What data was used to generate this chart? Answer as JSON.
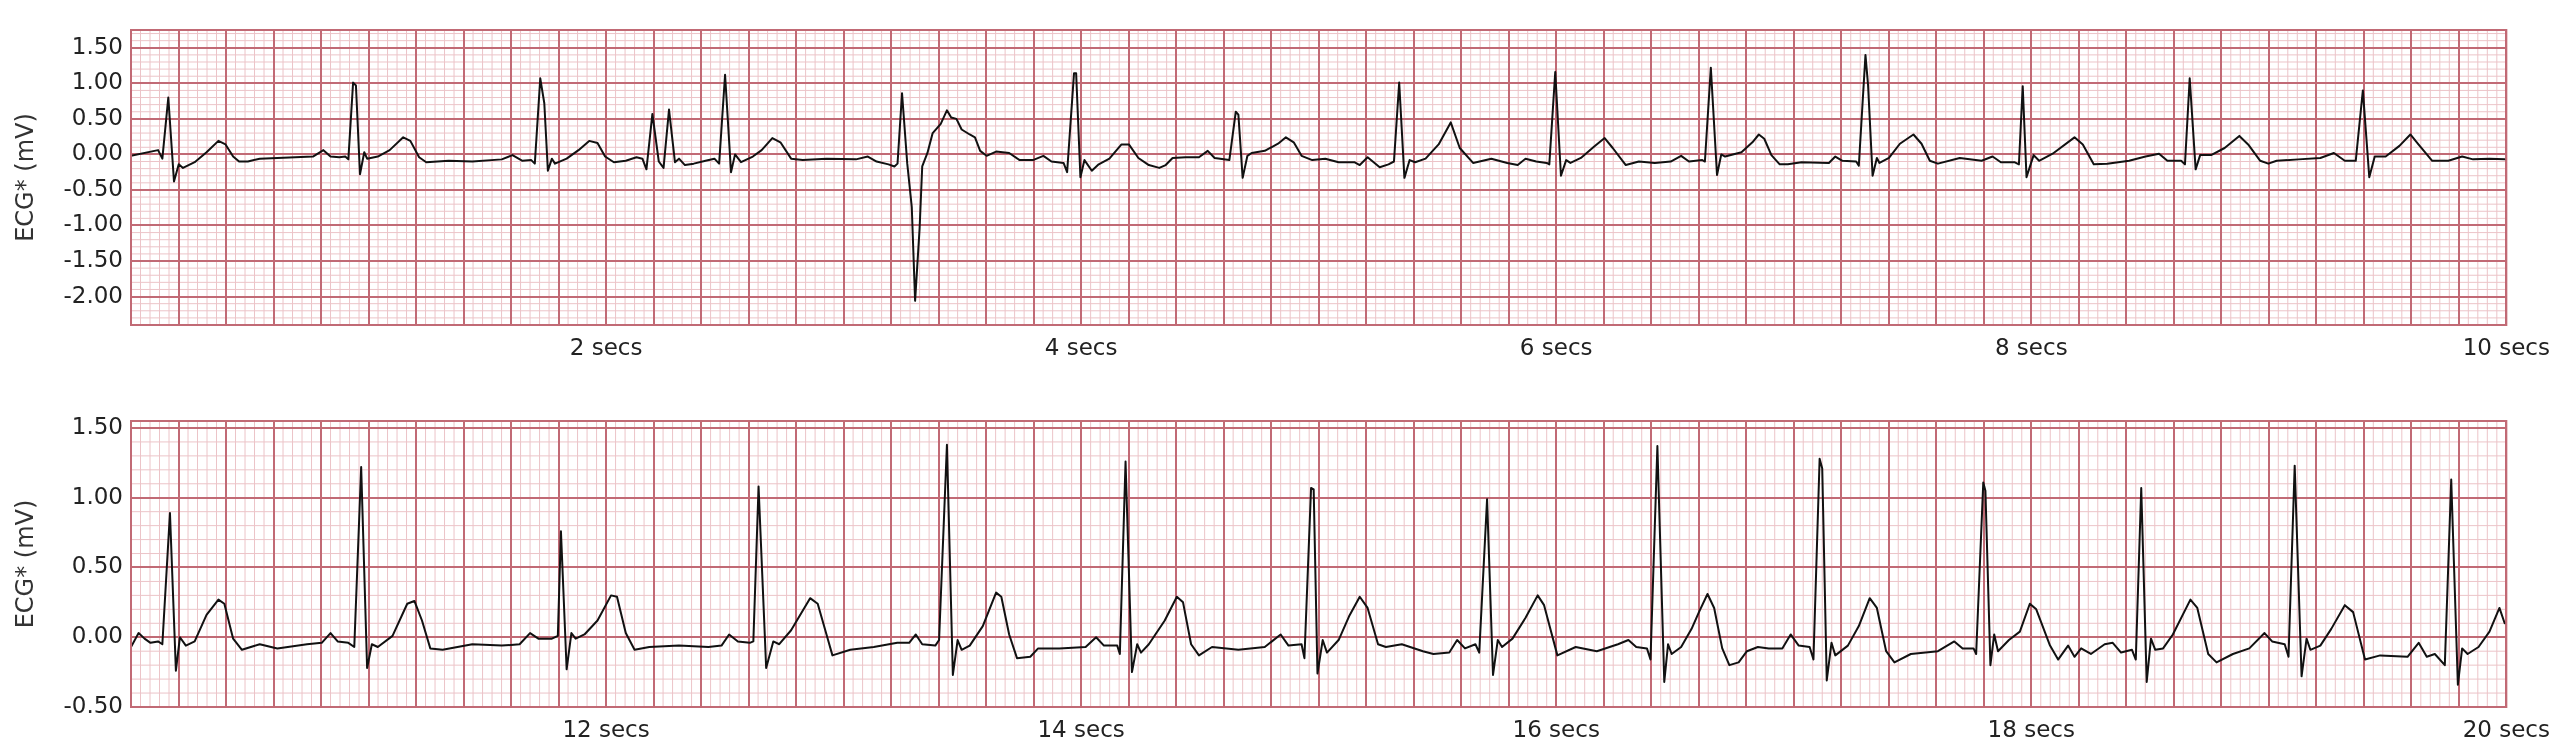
{
  "chart_data": [
    {
      "type": "line",
      "ylabel": "ECG* (mV)",
      "xlim": [
        0,
        10
      ],
      "ylim": [
        -2.4,
        1.75
      ],
      "grid": true,
      "xticks": [
        {
          "value": 0,
          "label": null
        },
        {
          "value": 0.2,
          "label": null
        },
        {
          "value": 0.4,
          "label": null
        },
        {
          "value": 0.6,
          "label": null
        },
        {
          "value": 0.8,
          "label": null
        },
        {
          "value": 1,
          "label": null
        },
        {
          "value": 1.2,
          "label": null
        },
        {
          "value": 1.4,
          "label": null
        },
        {
          "value": 1.6,
          "label": null
        },
        {
          "value": 1.8,
          "label": null
        },
        {
          "value": 2,
          "label": "2 secs"
        },
        {
          "value": 2.2,
          "label": null
        },
        {
          "value": 2.4,
          "label": null
        },
        {
          "value": 2.6,
          "label": null
        },
        {
          "value": 2.8,
          "label": null
        },
        {
          "value": 3,
          "label": null
        },
        {
          "value": 3.2,
          "label": null
        },
        {
          "value": 3.4,
          "label": null
        },
        {
          "value": 3.6,
          "label": null
        },
        {
          "value": 3.8,
          "label": null
        },
        {
          "value": 4,
          "label": "4 secs"
        },
        {
          "value": 4.2,
          "label": null
        },
        {
          "value": 4.4,
          "label": null
        },
        {
          "value": 4.6,
          "label": null
        },
        {
          "value": 4.8,
          "label": null
        },
        {
          "value": 5,
          "label": null
        },
        {
          "value": 5.2,
          "label": null
        },
        {
          "value": 5.4,
          "label": null
        },
        {
          "value": 5.6,
          "label": null
        },
        {
          "value": 5.8,
          "label": null
        },
        {
          "value": 6,
          "label": "6 secs"
        },
        {
          "value": 6.2,
          "label": null
        },
        {
          "value": 6.4,
          "label": null
        },
        {
          "value": 6.6,
          "label": null
        },
        {
          "value": 6.8,
          "label": null
        },
        {
          "value": 7,
          "label": null
        },
        {
          "value": 7.2,
          "label": null
        },
        {
          "value": 7.4,
          "label": null
        },
        {
          "value": 7.6,
          "label": null
        },
        {
          "value": 7.8,
          "label": null
        },
        {
          "value": 8,
          "label": "8 secs"
        },
        {
          "value": 8.2,
          "label": null
        },
        {
          "value": 8.4,
          "label": null
        },
        {
          "value": 8.6,
          "label": null
        },
        {
          "value": 8.8,
          "label": null
        },
        {
          "value": 9,
          "label": null
        },
        {
          "value": 9.2,
          "label": null
        },
        {
          "value": 9.4,
          "label": null
        },
        {
          "value": 9.6,
          "label": null
        },
        {
          "value": 9.8,
          "label": null
        },
        {
          "value": 10,
          "label": "10 secs"
        }
      ],
      "yticks": [
        {
          "value": -2,
          "label": "-2.00"
        },
        {
          "value": -1.5,
          "label": "-1.50"
        },
        {
          "value": -1,
          "label": "-1.00"
        },
        {
          "value": -0.5,
          "label": "-0.50"
        },
        {
          "value": 0,
          "label": "0.00"
        },
        {
          "value": 0.5,
          "label": "0.50"
        },
        {
          "value": 1,
          "label": "1.00"
        },
        {
          "value": 1.5,
          "label": "1.50"
        }
      ],
      "series": [
        {
          "color": "#111111",
          "x": [
            0,
            0.114,
            0.132,
            0.157,
            0.181,
            0.201,
            0.219,
            0.268,
            0.318,
            0.368,
            0.398,
            0.43,
            0.455,
            0.492,
            0.542,
            0.691,
            0.766,
            0.81,
            0.84,
            0.877,
            0.902,
            0.915,
            0.935,
            0.947,
            0.964,
            0.982,
            0.994,
            1.039,
            1.089,
            1.146,
            1.176,
            1.213,
            1.243,
            1.337,
            1.437,
            1.561,
            1.606,
            1.648,
            1.685,
            1.7,
            1.723,
            1.74,
            1.755,
            1.772,
            1.785,
            1.834,
            1.884,
            1.929,
            1.964,
            1.996,
            2.033,
            2.083,
            2.128,
            2.153,
            2.17,
            2.195,
            2.222,
            2.242,
            2.265,
            2.29,
            2.307,
            2.332,
            2.369,
            2.419,
            2.456,
            2.476,
            2.501,
            2.526,
            2.543,
            2.568,
            2.618,
            2.655,
            2.7,
            2.734,
            2.779,
            2.828,
            2.928,
            3.052,
            3.102,
            3.139,
            3.189,
            3.214,
            3.227,
            3.246,
            3.268,
            3.287,
            3.301,
            3.32,
            3.331,
            3.353,
            3.375,
            3.409,
            3.435,
            3.453,
            3.475,
            3.497,
            3.531,
            3.553,
            3.575,
            3.602,
            3.642,
            3.697,
            3.741,
            3.797,
            3.841,
            3.875,
            3.926,
            3.941,
            3.97,
            3.979,
            3.997,
            4.014,
            4.045,
            4.074,
            4.119,
            4.17,
            4.201,
            4.241,
            4.285,
            4.329,
            4.356,
            4.385,
            4.44,
            4.496,
            4.533,
            4.562,
            4.624,
            4.651,
            4.662,
            4.68,
            4.7,
            4.718,
            4.773,
            4.829,
            4.862,
            4.895,
            4.928,
            4.973,
            5.028,
            5.084,
            5.15,
            5.173,
            5.206,
            5.257,
            5.294,
            5.317,
            5.339,
            5.361,
            5.383,
            5.406,
            5.45,
            5.505,
            5.556,
            5.594,
            5.65,
            5.727,
            5.794,
            5.838,
            5.871,
            5.916,
            5.96,
            5.971,
            5.996,
            6.02,
            6.042,
            6.06,
            6.104,
            6.16,
            6.204,
            6.238,
            6.293,
            6.348,
            6.415,
            6.482,
            6.526,
            6.559,
            6.615,
            6.626,
            6.651,
            6.677,
            6.695,
            6.711,
            6.78,
            6.826,
            6.853,
            6.876,
            6.906,
            6.941,
            6.975,
            7.033,
            7.148,
            7.175,
            7.205,
            7.263,
            7.274,
            7.302,
            7.313,
            7.332,
            7.35,
            7.361,
            7.401,
            7.447,
            7.504,
            7.538,
            7.573,
            7.607,
            7.699,
            7.791,
            7.837,
            7.872,
            7.929,
            7.948,
            7.964,
            7.98,
            8.01,
            8.033,
            8.09,
            8.182,
            8.217,
            8.263,
            8.32,
            8.412,
            8.481,
            8.538,
            8.573,
            8.631,
            8.647,
            8.667,
            8.692,
            8.711,
            8.757,
            8.814,
            8.876,
            8.913,
            8.964,
            8.998,
            9.033,
            9.125,
            9.217,
            9.274,
            9.32,
            9.366,
            9.396,
            9.423,
            9.446,
            9.492,
            9.55,
            9.596,
            9.63,
            9.688,
            9.756,
            9.814,
            9.86,
            9.929,
            9.993
          ],
          "values": [
            -0.02,
            0.06,
            -0.06,
            0.8,
            -0.38,
            -0.14,
            -0.19,
            -0.11,
            0.03,
            0.19,
            0.14,
            -0.03,
            -0.1,
            -0.1,
            -0.06,
            -0.04,
            -0.03,
            0.06,
            -0.03,
            -0.04,
            -0.03,
            -0.07,
            1.01,
            0.97,
            -0.28,
            0.03,
            -0.06,
            -0.03,
            0.06,
            0.24,
            0.19,
            -0.04,
            -0.11,
            -0.09,
            -0.1,
            -0.07,
            -0.01,
            -0.09,
            -0.08,
            -0.13,
            1.07,
            0.72,
            -0.23,
            -0.06,
            -0.13,
            -0.06,
            0.06,
            0.19,
            0.16,
            -0.03,
            -0.11,
            -0.09,
            -0.04,
            -0.06,
            -0.21,
            0.57,
            -0.1,
            -0.19,
            0.63,
            -0.11,
            -0.06,
            -0.15,
            -0.13,
            -0.09,
            -0.06,
            -0.13,
            1.12,
            -0.25,
            0,
            -0.11,
            -0.03,
            0.06,
            0.23,
            0.17,
            -0.06,
            -0.08,
            -0.06,
            -0.07,
            -0.03,
            -0.1,
            -0.14,
            -0.17,
            -0.13,
            0.86,
            -0.13,
            -0.74,
            -2.06,
            -1.04,
            -0.17,
            0.02,
            0.3,
            0.43,
            0.62,
            0.52,
            0.5,
            0.35,
            0.28,
            0.24,
            0.05,
            -0.02,
            0.04,
            0.02,
            -0.08,
            -0.08,
            -0.02,
            -0.1,
            -0.12,
            -0.25,
            1.14,
            1.14,
            -0.32,
            -0.08,
            -0.23,
            -0.14,
            -0.06,
            0.14,
            0.14,
            -0.05,
            -0.15,
            -0.19,
            -0.15,
            -0.05,
            -0.04,
            -0.04,
            0.05,
            -0.05,
            -0.08,
            0.6,
            0.56,
            -0.33,
            -0.02,
            0.02,
            0.05,
            0.15,
            0.24,
            0.17,
            -0.02,
            -0.08,
            -0.06,
            -0.11,
            -0.11,
            -0.15,
            -0.04,
            -0.18,
            -0.14,
            -0.1,
            1.01,
            -0.33,
            -0.08,
            -0.11,
            -0.06,
            0.14,
            0.45,
            0.09,
            -0.12,
            -0.06,
            -0.12,
            -0.15,
            -0.06,
            -0.1,
            -0.12,
            -0.14,
            1.16,
            -0.3,
            -0.08,
            -0.12,
            -0.05,
            0.11,
            0.23,
            0.09,
            -0.15,
            -0.1,
            -0.12,
            -0.1,
            -0.02,
            -0.1,
            -0.08,
            -0.1,
            1.22,
            -0.29,
            0,
            -0.03,
            0.03,
            0.17,
            0.28,
            0.22,
            -0.01,
            -0.14,
            -0.14,
            -0.11,
            -0.12,
            -0.03,
            -0.09,
            -0.1,
            -0.16,
            1.4,
            0.97,
            -0.3,
            -0.05,
            -0.12,
            -0.05,
            0.15,
            0.28,
            0.15,
            -0.09,
            -0.13,
            -0.05,
            -0.09,
            -0.03,
            -0.11,
            -0.11,
            -0.14,
            0.96,
            -0.32,
            -0.01,
            -0.09,
            0.01,
            0.24,
            0.14,
            -0.14,
            -0.13,
            -0.09,
            -0.03,
            0.01,
            -0.09,
            -0.09,
            -0.14,
            1.07,
            -0.21,
            -0.01,
            -0.01,
            0.09,
            0.26,
            0.14,
            -0.09,
            -0.13,
            -0.09,
            -0.07,
            -0.05,
            0.02,
            -0.09,
            -0.09,
            0.9,
            -0.32,
            -0.03,
            -0.03,
            0.12,
            0.28,
            0.14,
            -0.09,
            -0.09,
            -0.03,
            -0.07,
            -0.06,
            -0.07
          ]
        }
      ]
    },
    {
      "type": "line",
      "ylabel": "ECG* (mV)",
      "xlim": [
        10,
        20
      ],
      "ylim": [
        -0.5,
        1.55
      ],
      "grid": true,
      "xticks": [
        {
          "value": 10,
          "label": null
        },
        {
          "value": 10.2,
          "label": null
        },
        {
          "value": 10.4,
          "label": null
        },
        {
          "value": 10.6,
          "label": null
        },
        {
          "value": 10.8,
          "label": null
        },
        {
          "value": 11,
          "label": null
        },
        {
          "value": 11.2,
          "label": null
        },
        {
          "value": 11.4,
          "label": null
        },
        {
          "value": 11.6,
          "label": null
        },
        {
          "value": 11.8,
          "label": null
        },
        {
          "value": 12,
          "label": "12 secs"
        },
        {
          "value": 12.2,
          "label": null
        },
        {
          "value": 12.4,
          "label": null
        },
        {
          "value": 12.6,
          "label": null
        },
        {
          "value": 12.8,
          "label": null
        },
        {
          "value": 13,
          "label": null
        },
        {
          "value": 13.2,
          "label": null
        },
        {
          "value": 13.4,
          "label": null
        },
        {
          "value": 13.6,
          "label": null
        },
        {
          "value": 13.8,
          "label": null
        },
        {
          "value": 14,
          "label": "14 secs"
        },
        {
          "value": 14.2,
          "label": null
        },
        {
          "value": 14.4,
          "label": null
        },
        {
          "value": 14.6,
          "label": null
        },
        {
          "value": 14.8,
          "label": null
        },
        {
          "value": 15,
          "label": null
        },
        {
          "value": 15.2,
          "label": null
        },
        {
          "value": 15.4,
          "label": null
        },
        {
          "value": 15.6,
          "label": null
        },
        {
          "value": 15.8,
          "label": null
        },
        {
          "value": 16,
          "label": "16 secs"
        },
        {
          "value": 16.2,
          "label": null
        },
        {
          "value": 16.4,
          "label": null
        },
        {
          "value": 16.6,
          "label": null
        },
        {
          "value": 16.8,
          "label": null
        },
        {
          "value": 17,
          "label": null
        },
        {
          "value": 17.2,
          "label": null
        },
        {
          "value": 17.4,
          "label": null
        },
        {
          "value": 17.6,
          "label": null
        },
        {
          "value": 17.8,
          "label": null
        },
        {
          "value": 18,
          "label": "18 secs"
        },
        {
          "value": 18.2,
          "label": null
        },
        {
          "value": 18.4,
          "label": null
        },
        {
          "value": 18.6,
          "label": null
        },
        {
          "value": 18.8,
          "label": null
        },
        {
          "value": 19,
          "label": null
        },
        {
          "value": 19.2,
          "label": null
        },
        {
          "value": 19.4,
          "label": null
        },
        {
          "value": 19.6,
          "label": null
        },
        {
          "value": 19.8,
          "label": null
        },
        {
          "value": 20,
          "label": "20 secs"
        }
      ],
      "yticks": [
        {
          "value": -0.5,
          "label": "-0.50"
        },
        {
          "value": 0,
          "label": "0.00"
        },
        {
          "value": 0.5,
          "label": "0.50"
        },
        {
          "value": 1,
          "label": "1.00"
        },
        {
          "value": 1.5,
          "label": "1.50"
        }
      ],
      "series": [
        {
          "color": "#111111",
          "x": [
            10,
            10.032,
            10.057,
            10.082,
            10.114,
            10.132,
            10.164,
            10.189,
            10.206,
            10.231,
            10.268,
            10.318,
            10.368,
            10.393,
            10.43,
            10.467,
            10.542,
            10.616,
            10.741,
            10.803,
            10.84,
            10.87,
            10.915,
            10.94,
            10.969,
            10.994,
            11.014,
            11.039,
            11.101,
            11.163,
            11.193,
            11.225,
            11.26,
            11.312,
            11.437,
            11.561,
            11.636,
            11.68,
            11.715,
            11.772,
            11.797,
            11.81,
            11.834,
            11.854,
            11.872,
            11.909,
            11.964,
            12.021,
            12.046,
            12.083,
            12.12,
            12.182,
            12.307,
            12.431,
            12.486,
            12.518,
            12.555,
            12.605,
            12.62,
            12.642,
            12.674,
            12.704,
            12.729,
            12.779,
            12.859,
            12.891,
            12.928,
            12.953,
            13.028,
            13.127,
            13.226,
            13.276,
            13.304,
            13.331,
            13.386,
            13.402,
            13.435,
            13.46,
            13.48,
            13.497,
            13.531,
            13.586,
            13.642,
            13.664,
            13.697,
            13.73,
            13.786,
            13.819,
            13.908,
            14.019,
            14.063,
            14.096,
            14.152,
            14.163,
            14.187,
            14.214,
            14.236,
            14.252,
            14.285,
            14.352,
            14.403,
            14.429,
            14.463,
            14.496,
            14.551,
            14.662,
            14.773,
            14.84,
            14.873,
            14.928,
            14.94,
            14.968,
            14.979,
            14.995,
            15.017,
            15.035,
            15.084,
            15.128,
            15.173,
            15.206,
            15.25,
            15.283,
            15.35,
            15.439,
            15.483,
            15.55,
            15.583,
            15.616,
            15.66,
            15.676,
            15.709,
            15.734,
            15.754,
            15.772,
            15.816,
            15.871,
            15.922,
            15.949,
            16.005,
            16.082,
            16.171,
            16.26,
            16.304,
            16.337,
            16.382,
            16.397,
            16.426,
            16.455,
            16.471,
            16.486,
            16.526,
            16.57,
            16.601,
            16.637,
            16.665,
            16.699,
            16.729,
            16.768,
            16.803,
            16.849,
            16.895,
            16.952,
            16.987,
            17.021,
            17.067,
            17.083,
            17.109,
            17.12,
            17.139,
            17.159,
            17.175,
            17.228,
            17.274,
            17.32,
            17.35,
            17.389,
            17.424,
            17.493,
            17.607,
            17.676,
            17.711,
            17.757,
            17.768,
            17.798,
            17.807,
            17.828,
            17.844,
            17.86,
            17.906,
            17.952,
            17.994,
            18.021,
            18.079,
            18.113,
            18.155,
            18.182,
            18.21,
            18.251,
            18.309,
            18.343,
            18.378,
            18.424,
            18.44,
            18.463,
            18.486,
            18.504,
            18.522,
            18.555,
            18.596,
            18.67,
            18.699,
            18.745,
            18.78,
            18.849,
            18.918,
            18.982,
            19.014,
            19.067,
            19.083,
            19.109,
            19.138,
            19.159,
            19.175,
            19.217,
            19.263,
            19.32,
            19.355,
            19.405,
            19.469,
            19.584,
            19.631,
            19.665,
            19.699,
            19.741,
            19.768,
            19.796,
            19.814,
            19.837,
            19.883,
            19.929,
            19.971,
            19.993
          ],
          "values": [
            -0.07,
            0.03,
            -0.01,
            -0.04,
            -0.03,
            -0.05,
            0.89,
            -0.24,
            0,
            -0.06,
            -0.03,
            0.16,
            0.27,
            0.24,
            -0.01,
            -0.09,
            -0.05,
            -0.08,
            -0.05,
            -0.04,
            0.03,
            -0.03,
            -0.04,
            -0.07,
            1.22,
            -0.22,
            -0.05,
            -0.07,
            0.01,
            0.24,
            0.26,
            0.12,
            -0.08,
            -0.09,
            -0.05,
            -0.06,
            -0.05,
            0.03,
            -0.01,
            -0.01,
            0.01,
            0.76,
            -0.23,
            0.03,
            -0.01,
            0.02,
            0.12,
            0.3,
            0.29,
            0.03,
            -0.09,
            -0.07,
            -0.06,
            -0.07,
            -0.06,
            0.02,
            -0.03,
            -0.04,
            -0.03,
            1.08,
            -0.22,
            -0.03,
            -0.05,
            0.05,
            0.28,
            0.24,
            0.02,
            -0.13,
            -0.09,
            -0.07,
            -0.04,
            -0.04,
            0.02,
            -0.05,
            -0.06,
            -0.02,
            1.38,
            -0.27,
            -0.02,
            -0.09,
            -0.06,
            0.08,
            0.32,
            0.29,
            0.02,
            -0.15,
            -0.14,
            -0.08,
            -0.08,
            -0.07,
            0,
            -0.06,
            -0.06,
            -0.12,
            1.26,
            -0.25,
            -0.05,
            -0.11,
            -0.05,
            0.12,
            0.29,
            0.25,
            -0.05,
            -0.13,
            -0.07,
            -0.09,
            -0.07,
            0.02,
            -0.06,
            -0.05,
            -0.15,
            1.07,
            1.06,
            -0.26,
            -0.02,
            -0.11,
            -0.02,
            0.15,
            0.29,
            0.21,
            -0.05,
            -0.07,
            -0.05,
            -0.1,
            -0.12,
            -0.11,
            -0.02,
            -0.08,
            -0.05,
            -0.11,
            0.99,
            -0.27,
            -0.02,
            -0.07,
            -0.01,
            0.14,
            0.3,
            0.23,
            -0.13,
            -0.07,
            -0.1,
            -0.05,
            -0.02,
            -0.07,
            -0.08,
            -0.16,
            1.37,
            -0.32,
            -0.05,
            -0.12,
            -0.07,
            0.06,
            0.18,
            0.31,
            0.21,
            -0.08,
            -0.2,
            -0.18,
            -0.1,
            -0.07,
            -0.08,
            -0.08,
            0.02,
            -0.06,
            -0.07,
            -0.16,
            1.28,
            1.21,
            -0.31,
            -0.04,
            -0.13,
            -0.06,
            0.08,
            0.28,
            0.21,
            -0.1,
            -0.18,
            -0.12,
            -0.1,
            -0.03,
            -0.08,
            -0.08,
            -0.12,
            1.11,
            1.05,
            -0.2,
            0.02,
            -0.1,
            -0.02,
            0.04,
            0.24,
            0.2,
            -0.06,
            -0.16,
            -0.06,
            -0.14,
            -0.08,
            -0.12,
            -0.05,
            -0.04,
            -0.11,
            -0.09,
            -0.16,
            1.07,
            -0.32,
            -0.01,
            -0.09,
            -0.08,
            0.02,
            0.27,
            0.21,
            -0.12,
            -0.18,
            -0.12,
            -0.08,
            0.03,
            -0.03,
            -0.05,
            -0.14,
            1.23,
            -0.28,
            -0.01,
            -0.09,
            -0.06,
            0.06,
            0.23,
            0.18,
            -0.16,
            -0.13,
            -0.14,
            -0.04,
            -0.14,
            -0.12,
            -0.2,
            1.13,
            -0.34,
            -0.08,
            -0.12,
            -0.07,
            0.04,
            0.21,
            0.1
          ]
        }
      ]
    }
  ]
}
